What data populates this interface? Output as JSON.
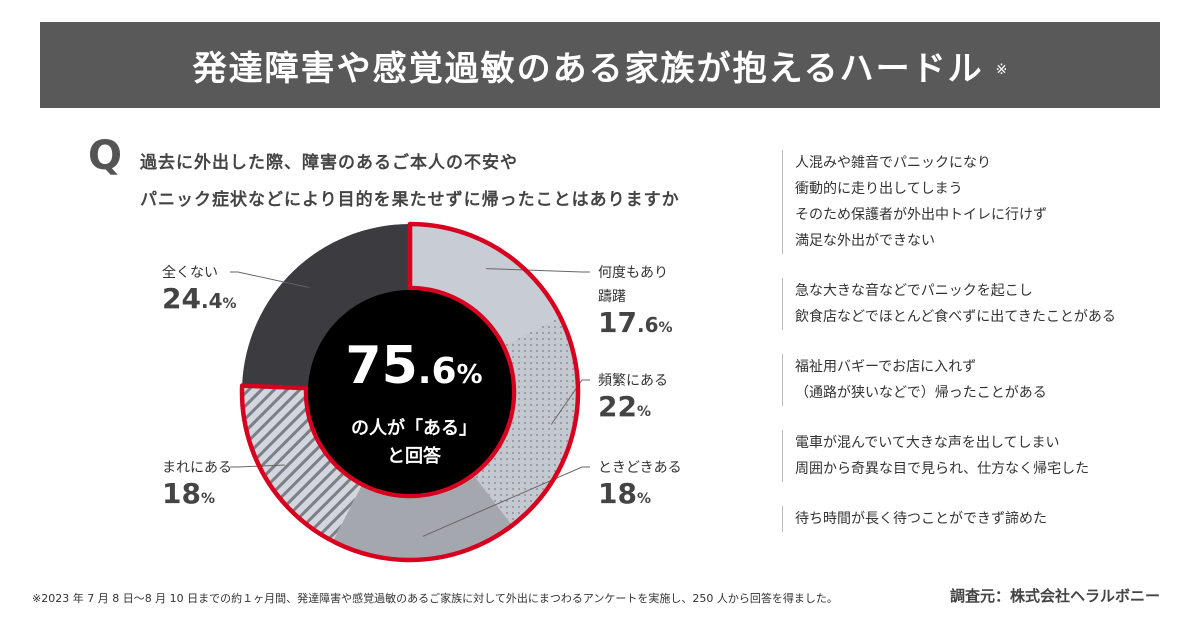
{
  "title": "発達障害や感覚過敏のある家族が抱えるハードル",
  "title_note": "※",
  "question_mark": "Q",
  "question_lines": [
    "過去に外出した際、障害のあるご本人の不安や",
    "パニック症状などにより目的を果たせずに帰ったことはありますか"
  ],
  "center": {
    "big_int": "75",
    "big_dec": ".6",
    "big_pct": "%",
    "line1": "の人が「ある」",
    "line2": "と回答"
  },
  "chart_data": {
    "type": "pie",
    "slices": [
      {
        "label": "何度もあり躊躇",
        "label_lines": [
          "何度もあり",
          "躊躇"
        ],
        "value": 17.6,
        "int": "17",
        "dec": ".6",
        "pct": "%",
        "color": "#c8ccd4",
        "pattern": "solid",
        "group": "ある"
      },
      {
        "label": "頻繁にある",
        "label_lines": [
          "頻繁にある"
        ],
        "value": 22,
        "int": "22",
        "dec": "",
        "pct": "%",
        "color": "#b7bbc3",
        "pattern": "dots",
        "group": "ある"
      },
      {
        "label": "ときどきある",
        "label_lines": [
          "ときどきある"
        ],
        "value": 18,
        "int": "18",
        "dec": "",
        "pct": "%",
        "color": "#a4a7ae",
        "pattern": "solid",
        "group": "ある"
      },
      {
        "label": "まれにある",
        "label_lines": [
          "まれにある"
        ],
        "value": 18,
        "int": "18",
        "dec": "",
        "pct": "%",
        "color": "#cfd2d8",
        "pattern": "stripes",
        "group": "ある"
      },
      {
        "label": "全くない",
        "label_lines": [
          "全くない"
        ],
        "value": 24.4,
        "int": "24",
        "dec": ".4",
        "pct": "%",
        "color": "#3b3b40",
        "pattern": "solid",
        "group": "ない"
      }
    ],
    "highlight_color": "#d7001f",
    "center_color": "#000000"
  },
  "side_notes": [
    {
      "lines": [
        "人混みや雑音でパニックになり",
        "衝動的に走り出してしまう",
        "そのため保護者が外出中トイレに行けず",
        "満足な外出ができない"
      ]
    },
    {
      "lines": [
        "急な大きな音などでパニックを起こし",
        "飲食店などでほとんど食べずに出てきたことがある"
      ]
    },
    {
      "lines": [
        "福祉用バギーでお店に入れず",
        "（通路が狭いなどで）帰ったことがある"
      ]
    },
    {
      "lines": [
        "電車が混んでいて大きな声を出してしまい",
        "周囲から奇異な目で見られ、仕方なく帰宅した"
      ]
    },
    {
      "lines": [
        "待ち時間が長く待つことができず諦めた"
      ]
    }
  ],
  "footnote": "※2023 年 7 月 8 日～8 月 10 日までの約１ヶ月間、発達障害や感覚過敏のあるご家族に対して外出にまつわるアンケートを実施し、250 人から回答を得ました。",
  "source": "調査元：株式会社ヘラルボニー"
}
